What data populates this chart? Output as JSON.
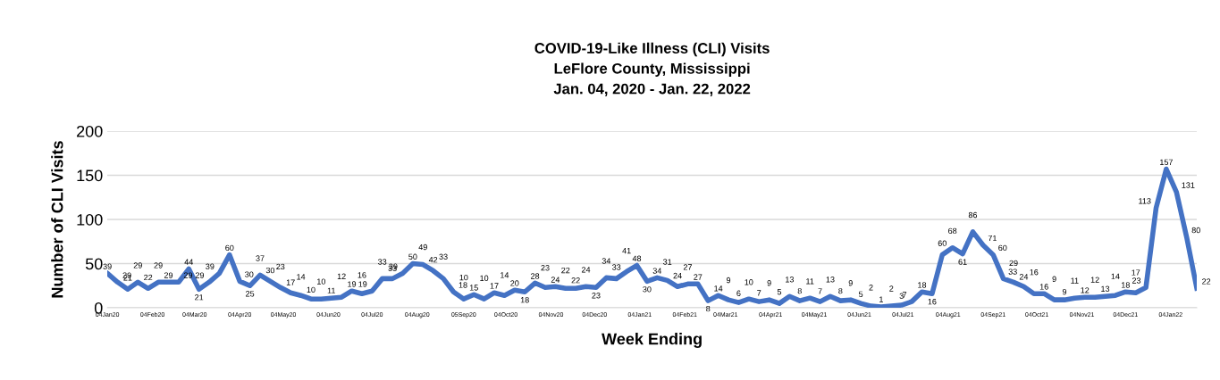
{
  "chart_data": {
    "type": "line",
    "title": "COVID-19-Like Illness (CLI) Visits\nLeFlore County, Mississippi\nJan. 04, 2020 - Jan. 22, 2022",
    "xlabel": "Week Ending",
    "ylabel": "Number of CLI Visits",
    "x": [
      "2020-01-04",
      "2020-01-11",
      "2020-01-18",
      "2020-01-25",
      "2020-02-01",
      "2020-02-08",
      "2020-02-15",
      "2020-02-22",
      "2020-02-29",
      "2020-03-07",
      "2020-03-14",
      "2020-03-21",
      "2020-03-28",
      "2020-04-04",
      "2020-04-11",
      "2020-04-18",
      "2020-04-25",
      "2020-05-02",
      "2020-05-09",
      "2020-05-16",
      "2020-05-23",
      "2020-05-30",
      "2020-06-06",
      "2020-06-13",
      "2020-06-20",
      "2020-06-27",
      "2020-07-04",
      "2020-07-11",
      "2020-07-18",
      "2020-07-25",
      "2020-08-01",
      "2020-08-08",
      "2020-08-15",
      "2020-08-22",
      "2020-08-29",
      "2020-09-05",
      "2020-09-12",
      "2020-09-19",
      "2020-09-26",
      "2020-10-03",
      "2020-10-10",
      "2020-10-17",
      "2020-10-24",
      "2020-10-31",
      "2020-11-07",
      "2020-11-14",
      "2020-11-21",
      "2020-11-28",
      "2020-12-05",
      "2020-12-12",
      "2020-12-19",
      "2020-12-26",
      "2021-01-02",
      "2021-01-09",
      "2021-01-16",
      "2021-01-23",
      "2021-01-30",
      "2021-02-06",
      "2021-02-13",
      "2021-02-20",
      "2021-02-27",
      "2021-03-06",
      "2021-03-13",
      "2021-03-20",
      "2021-03-27",
      "2021-04-03",
      "2021-04-10",
      "2021-04-17",
      "2021-04-24",
      "2021-05-01",
      "2021-05-08",
      "2021-05-15",
      "2021-05-22",
      "2021-05-29",
      "2021-06-05",
      "2021-06-12",
      "2021-06-19",
      "2021-06-26",
      "2021-07-03",
      "2021-07-10",
      "2021-07-17",
      "2021-07-24",
      "2021-07-31",
      "2021-08-07",
      "2021-08-14",
      "2021-08-21",
      "2021-08-28",
      "2021-09-04",
      "2021-09-11",
      "2021-09-18",
      "2021-09-25",
      "2021-10-02",
      "2021-10-09",
      "2021-10-16",
      "2021-10-23",
      "2021-10-30",
      "2021-11-06",
      "2021-11-13",
      "2021-11-20",
      "2021-11-27",
      "2021-12-04",
      "2021-12-11",
      "2021-12-18",
      "2021-12-25",
      "2022-01-01",
      "2022-01-08",
      "2022-01-15",
      "2022-01-22"
    ],
    "series": [
      {
        "color": "#4472c4",
        "values": [
          39,
          29,
          21,
          29,
          22,
          29,
          29,
          29,
          44,
          21,
          29,
          39,
          60,
          30,
          25,
          37,
          30,
          23,
          17,
          14,
          10,
          10,
          11,
          12,
          19,
          16,
          19,
          33,
          33,
          39,
          50,
          49,
          42,
          33,
          18,
          10,
          15,
          10,
          17,
          14,
          20,
          18,
          28,
          23,
          24,
          22,
          22,
          24,
          23,
          34,
          33,
          41,
          48,
          30,
          34,
          31,
          24,
          27,
          27,
          8,
          14,
          9,
          6,
          10,
          7,
          9,
          5,
          13,
          8,
          11,
          7,
          13,
          8,
          9,
          5,
          2,
          1,
          2,
          3,
          7,
          18,
          16,
          60,
          68,
          61,
          86,
          71,
          60,
          33,
          29,
          24,
          16,
          16,
          9,
          9,
          11,
          12,
          12,
          13,
          14,
          18,
          17,
          23,
          113,
          157,
          131,
          80,
          22
        ]
      }
    ],
    "xlim": [
      "2020-01-04",
      "2022-01-22"
    ],
    "xticks": [
      {
        "value": "2020-01-04",
        "label": "04Jan20"
      },
      {
        "value": "2020-02-04",
        "label": "04Feb20"
      },
      {
        "value": "2020-03-04",
        "label": "04Mar20"
      },
      {
        "value": "2020-04-04",
        "label": "04Apr20"
      },
      {
        "value": "2020-05-04",
        "label": "04May20"
      },
      {
        "value": "2020-06-04",
        "label": "04Jun20"
      },
      {
        "value": "2020-07-04",
        "label": "04Jul20"
      },
      {
        "value": "2020-08-04",
        "label": "04Aug20"
      },
      {
        "value": "2020-09-05",
        "label": "05Sep20"
      },
      {
        "value": "2020-10-04",
        "label": "04Oct20"
      },
      {
        "value": "2020-11-04",
        "label": "04Nov20"
      },
      {
        "value": "2020-12-04",
        "label": "04Dec20"
      },
      {
        "value": "2021-01-04",
        "label": "04Jan21"
      },
      {
        "value": "2021-02-04",
        "label": "04Feb21"
      },
      {
        "value": "2021-03-04",
        "label": "04Mar21"
      },
      {
        "value": "2021-04-04",
        "label": "04Apr21"
      },
      {
        "value": "2021-05-04",
        "label": "04May21"
      },
      {
        "value": "2021-06-04",
        "label": "04Jun21"
      },
      {
        "value": "2021-07-04",
        "label": "04Jul21"
      },
      {
        "value": "2021-08-04",
        "label": "04Aug21"
      },
      {
        "value": "2021-09-04",
        "label": "04Sep21"
      },
      {
        "value": "2021-10-04",
        "label": "04Oct21"
      },
      {
        "value": "2021-11-04",
        "label": "04Nov21"
      },
      {
        "value": "2021-12-04",
        "label": "04Dec21"
      },
      {
        "value": "2022-01-04",
        "label": "04Jan22"
      }
    ],
    "ylim": [
      0,
      200
    ],
    "yticks": [
      0,
      50,
      100,
      150,
      200
    ],
    "grid": "y",
    "marker": "none",
    "line_style": "solid",
    "data_labels": true
  }
}
